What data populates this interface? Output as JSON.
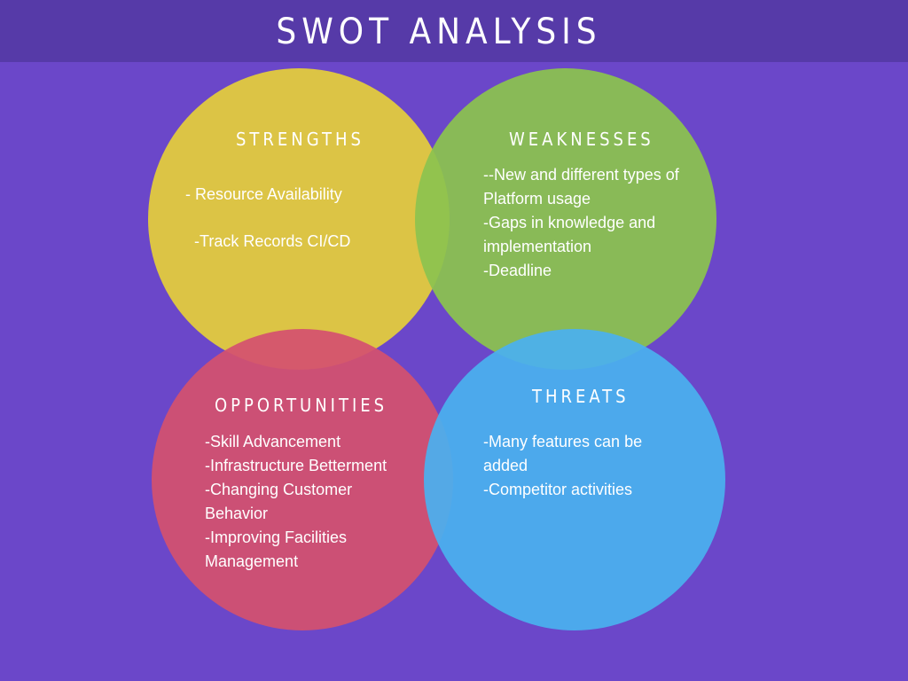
{
  "title": "SWOT ANALYSIS",
  "colors": {
    "background": "#6b47c9",
    "header_band": "#563aa8",
    "strengths": "#dcc445",
    "weaknesses": "#8cc34f",
    "opportunities": "#d4516f",
    "threats": "#4ab0ef",
    "text": "#ffffff"
  },
  "quadrants": {
    "strengths": {
      "heading": "STRENGTHS",
      "items": [
        "- Resource Availability",
        "-Track Records CI/CD"
      ]
    },
    "weaknesses": {
      "heading": "WEAKNESSES",
      "items": [
        "--New and different types of Platform usage",
        "-Gaps in knowledge and implementation",
        "-Deadline"
      ]
    },
    "opportunities": {
      "heading": "OPPORTUNITIES",
      "items": [
        "-Skill Advancement",
        "-Infrastructure Betterment",
        "-Changing Customer Behavior",
        "-Improving Facilities Management"
      ]
    },
    "threats": {
      "heading": "THREATS",
      "items": [
        "-Many features can be added",
        "-Competitor activities"
      ]
    }
  }
}
